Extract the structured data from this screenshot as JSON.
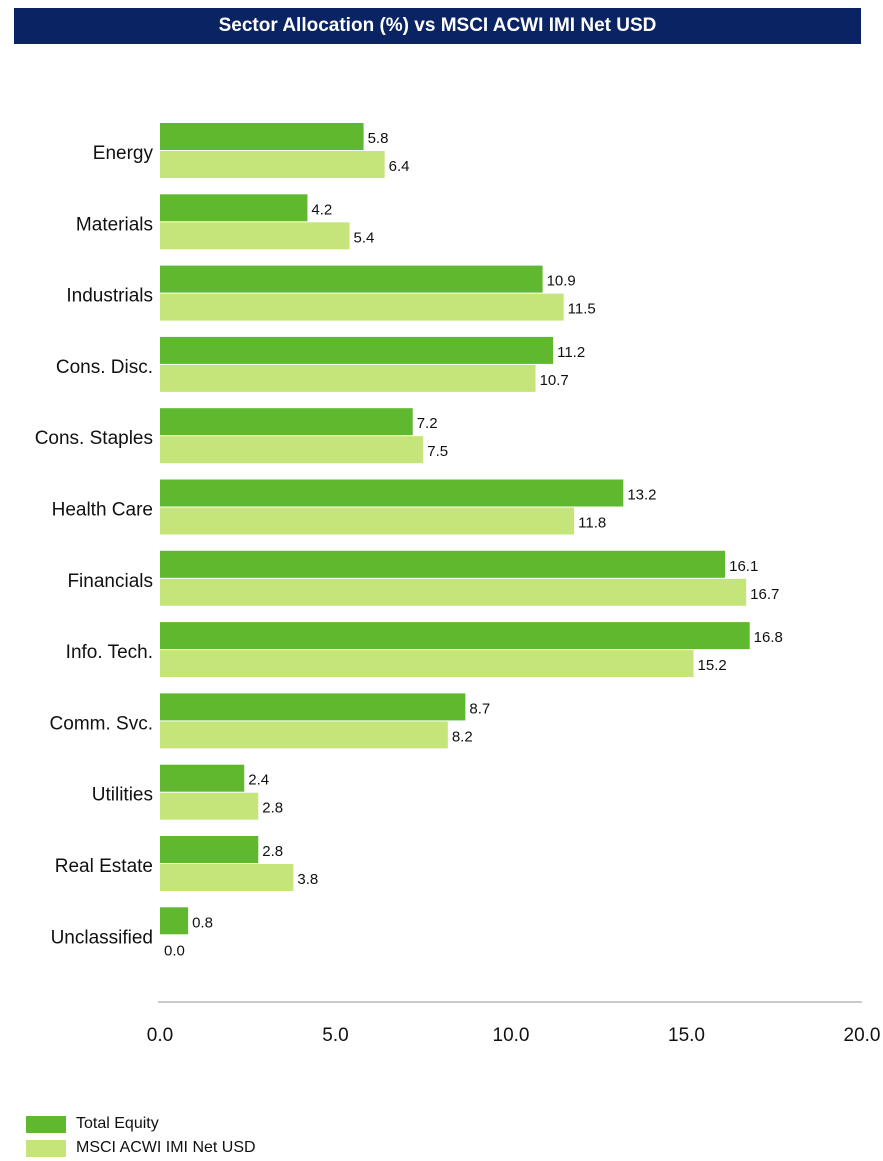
{
  "chart_data": {
    "type": "bar",
    "orientation": "horizontal",
    "title": "Sector Allocation (%) vs MSCI ACWI IMI Net USD",
    "categories": [
      "Energy",
      "Materials",
      "Industrials",
      "Cons. Disc.",
      "Cons. Staples",
      "Health Care",
      "Financials",
      "Info. Tech.",
      "Comm. Svc.",
      "Utilities",
      "Real Estate",
      "Unclassified"
    ],
    "series": [
      {
        "name": "Total Equity",
        "color": "#5fb82e",
        "values": [
          5.8,
          4.2,
          10.9,
          11.2,
          7.2,
          13.2,
          16.1,
          16.8,
          8.7,
          2.4,
          2.8,
          0.8
        ]
      },
      {
        "name": "MSCI ACWI IMI Net USD",
        "color": "#c5e57a",
        "values": [
          6.4,
          5.4,
          11.5,
          10.7,
          7.5,
          11.8,
          16.7,
          15.2,
          8.2,
          2.8,
          3.8,
          0.0
        ]
      }
    ],
    "xlim": [
      0,
      20
    ],
    "xticks": [
      "0.0",
      "5.0",
      "10.0",
      "15.0",
      "20.0"
    ],
    "legend": "bottom-left",
    "grid": false
  }
}
